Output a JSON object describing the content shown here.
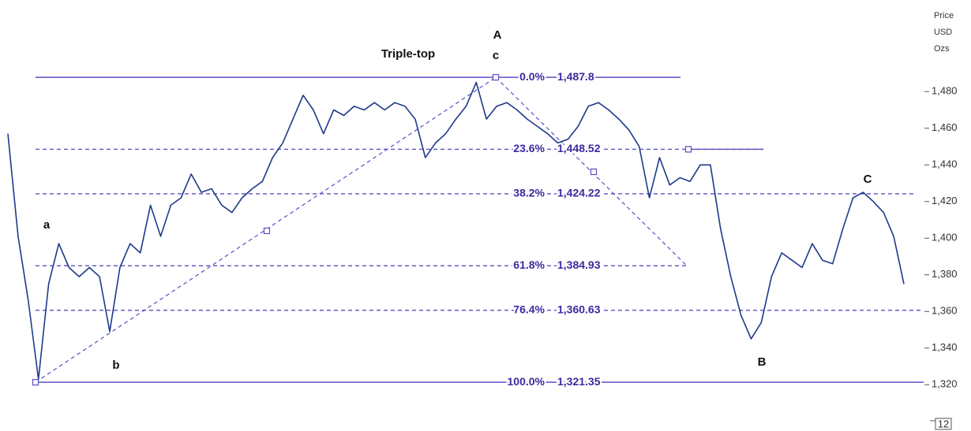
{
  "chart_data": {
    "type": "line",
    "axis_title": [
      "Price",
      "USD",
      "Ozs"
    ],
    "annotation": "Triple-top",
    "wave_labels": [
      "a",
      "b",
      "A",
      "c",
      "B",
      "C"
    ],
    "page_number": "12",
    "color": "#1e3a8a",
    "values": [
      1457,
      1401,
      1366,
      1323,
      1375,
      1397,
      1384,
      1379,
      1384,
      1379,
      1349,
      1384,
      1397,
      1392,
      1418,
      1401,
      1418,
      1422,
      1435,
      1425,
      1427,
      1418,
      1414,
      1422,
      1427,
      1431,
      1444,
      1452,
      1465,
      1478,
      1470,
      1457,
      1470,
      1467,
      1472,
      1470,
      1474,
      1470,
      1474,
      1472,
      1465,
      1444,
      1452,
      1457,
      1465,
      1472,
      1485,
      1465,
      1472,
      1474,
      1470,
      1465,
      1461,
      1457,
      1452,
      1454,
      1461,
      1472,
      1474,
      1470,
      1465,
      1459,
      1450,
      1422,
      1444,
      1429,
      1433,
      1431,
      1440,
      1440,
      1405,
      1379,
      1358,
      1345,
      1354,
      1379,
      1392,
      1388,
      1384,
      1397,
      1388,
      1386,
      1405,
      1422,
      1425,
      1420,
      1414,
      1401,
      1375
    ],
    "ylim": [
      1295,
      1530
    ],
    "yticks": [
      {
        "value": 1320,
        "label": "1,320"
      },
      {
        "value": 1340,
        "label": "1,340"
      },
      {
        "value": 1360,
        "label": "1,360"
      },
      {
        "value": 1380,
        "label": "1,380"
      },
      {
        "value": 1400,
        "label": "1,400"
      },
      {
        "value": 1420,
        "label": "1,420"
      },
      {
        "value": 1440,
        "label": "1,440"
      },
      {
        "value": 1460,
        "label": "1,460"
      },
      {
        "value": 1480,
        "label": "1,480"
      }
    ],
    "fib_levels": {
      "ratios": [
        0,
        23.6,
        38.2,
        61.8,
        76.4,
        100
      ],
      "ratio_labels": [
        "0.0%",
        "23.6%",
        "38.2%",
        "61.8%",
        "76.4%",
        "100.0%"
      ],
      "prices": [
        1487.8,
        1448.52,
        1424.22,
        1384.93,
        1360.63,
        1321.35
      ],
      "price_labels": [
        "1,487.8",
        "1,448.52",
        "1,424.22",
        "1,384.93",
        "1,360.63",
        "1,321.35"
      ],
      "color": "#5b4fc4"
    }
  }
}
